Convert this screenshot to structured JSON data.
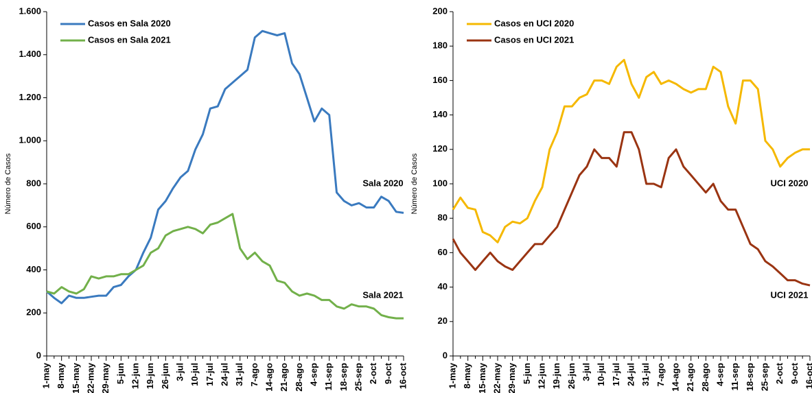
{
  "chart_data": [
    {
      "type": "line",
      "ylabel": "Número de Casos",
      "categories": [
        "1-may",
        null,
        "8-may",
        null,
        "15-may",
        null,
        "22-may",
        null,
        "29-may",
        null,
        "5-jun",
        null,
        "12-jun",
        null,
        "19-jun",
        null,
        "26-jun",
        null,
        "3-jul",
        null,
        "10-jul",
        null,
        "17-jul",
        null,
        "24-jul",
        null,
        "31-jul",
        null,
        "7-ago",
        null,
        "14-ago",
        null,
        "21-ago",
        null,
        "28-ago",
        null,
        "4-sep",
        null,
        "11-sep",
        null,
        "18-sep",
        null,
        "25-sep",
        null,
        "2-oct",
        null,
        "9-oct",
        null,
        "16-oct"
      ],
      "series": [
        {
          "name": "Casos en Sala 2020",
          "color": "#3a7abf",
          "values": [
            300,
            270,
            245,
            280,
            270,
            270,
            275,
            280,
            280,
            320,
            330,
            370,
            400,
            480,
            550,
            680,
            720,
            780,
            830,
            860,
            960,
            1030,
            1150,
            1160,
            1240,
            1270,
            1300,
            1330,
            1480,
            1510,
            1500,
            1490,
            1500,
            1360,
            1310,
            1200,
            1090,
            1150,
            1120,
            760,
            720,
            700,
            710,
            690,
            690,
            740,
            720,
            670,
            665
          ]
        },
        {
          "name": "Casos en Sala 2021",
          "color": "#72b04a",
          "values": [
            300,
            290,
            320,
            300,
            290,
            310,
            370,
            360,
            370,
            370,
            380,
            380,
            400,
            420,
            480,
            500,
            560,
            580,
            590,
            600,
            590,
            570,
            610,
            620,
            640,
            660,
            500,
            450,
            480,
            440,
            420,
            350,
            340,
            300,
            280,
            290,
            280,
            260,
            260,
            230,
            220,
            240,
            230,
            230,
            220,
            190,
            180,
            175,
            175
          ]
        }
      ],
      "annotations": [
        {
          "text": "Sala 2020",
          "color": "#2e5f8e"
        },
        {
          "text": "Sala 2021",
          "color": "#6a9a3a"
        }
      ],
      "ylim": [
        0,
        1600
      ],
      "yticks": [
        0,
        200,
        400,
        600,
        800,
        {
          "value": 1000,
          "label": "1.000"
        },
        {
          "value": 1200,
          "label": "1.200"
        },
        {
          "value": 1400,
          "label": "1.400"
        },
        {
          "value": 1600,
          "label": "1.600"
        }
      ],
      "legend": "upper left",
      "grid": false
    },
    {
      "type": "line",
      "ylabel": "Número de Casos",
      "categories": [
        "1-may",
        null,
        "8-may",
        null,
        "15-may",
        null,
        "22-may",
        null,
        "29-may",
        null,
        "5-jun",
        null,
        "12-jun",
        null,
        "19-jun",
        null,
        "26-jun",
        null,
        "3-jul",
        null,
        "10-jul",
        null,
        "17-jul",
        null,
        "24-jul",
        null,
        "31-jul",
        null,
        "7-ago",
        null,
        "14-ago",
        null,
        "21-ago",
        null,
        "28-ago",
        null,
        "4-sep",
        null,
        "11-sep",
        null,
        "18-sep",
        null,
        "25-sep",
        null,
        "2-oct",
        null,
        "9-oct",
        null,
        "16-oct"
      ],
      "series": [
        {
          "name": "Casos en UCI 2020",
          "color": "#f5b800",
          "values": [
            85,
            92,
            86,
            85,
            72,
            70,
            66,
            75,
            78,
            77,
            80,
            90,
            98,
            120,
            130,
            145,
            145,
            150,
            152,
            160,
            160,
            158,
            168,
            172,
            158,
            150,
            162,
            165,
            158,
            160,
            158,
            155,
            153,
            155,
            155,
            168,
            165,
            145,
            135,
            160,
            160,
            155,
            125,
            120,
            110,
            115,
            118,
            120,
            120
          ]
        },
        {
          "name": "Casos en UCI 2021",
          "color": "#9a3412",
          "values": [
            68,
            60,
            55,
            50,
            55,
            60,
            55,
            52,
            50,
            55,
            60,
            65,
            65,
            70,
            75,
            85,
            95,
            105,
            110,
            120,
            115,
            115,
            110,
            130,
            130,
            120,
            100,
            100,
            98,
            115,
            120,
            110,
            105,
            100,
            95,
            100,
            90,
            85,
            85,
            75,
            65,
            62,
            55,
            52,
            48,
            44,
            44,
            42,
            41
          ]
        }
      ],
      "annotations": [
        {
          "text": "UCI 2020",
          "color": "#d9a800"
        },
        {
          "text": "UCI 2021",
          "color": "#a0401a"
        }
      ],
      "ylim": [
        0,
        200
      ],
      "yticks": [
        0,
        20,
        40,
        60,
        80,
        100,
        120,
        140,
        160,
        180,
        200
      ],
      "legend": "upper left",
      "grid": false
    }
  ]
}
